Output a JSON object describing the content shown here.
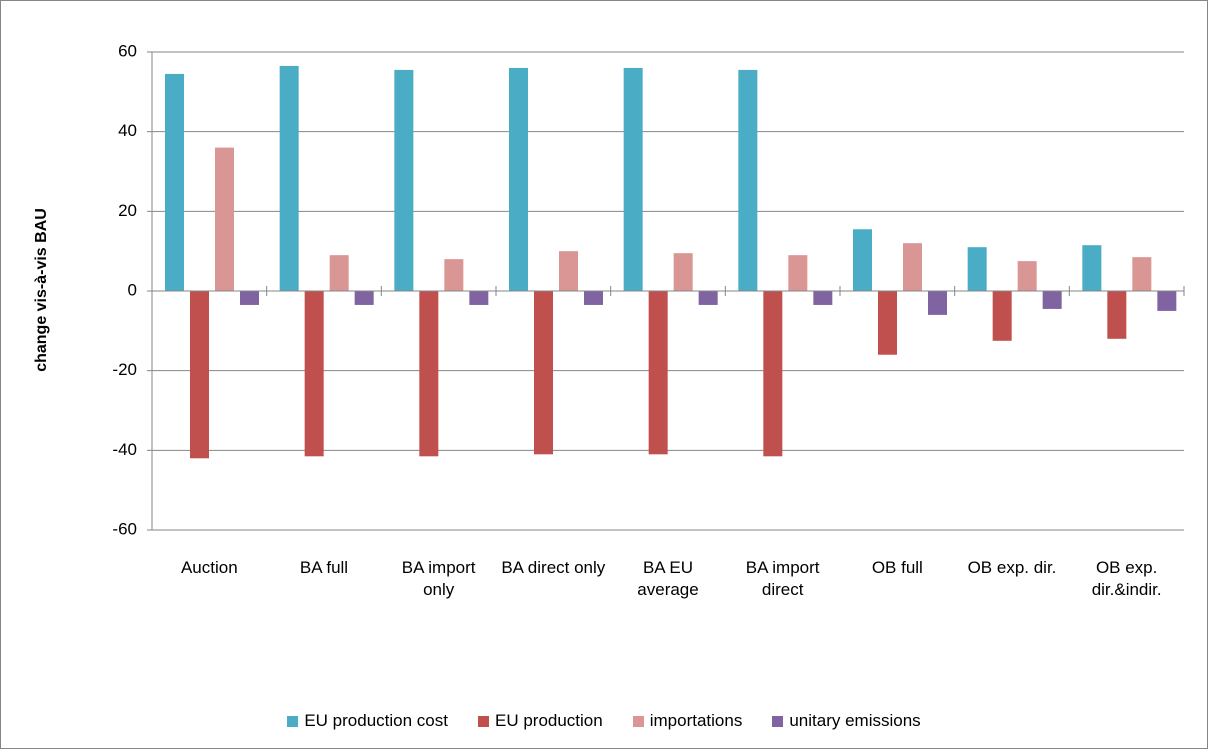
{
  "chart_data": {
    "type": "bar",
    "y_label": "change vis-à-vis BAU",
    "categories": [
      "Auction",
      "BA full",
      "BA import only",
      "BA direct only",
      "BA EU average",
      "BA import direct",
      "OB full",
      "OB exp. dir.",
      "OB exp. dir.&indir."
    ],
    "series": [
      {
        "name": "EU production cost",
        "color": "#4bacc6",
        "values": [
          54.5,
          56.5,
          55.5,
          56,
          56,
          55.5,
          15.5,
          11,
          11.5
        ]
      },
      {
        "name": "EU production",
        "color": "#c0504d",
        "values": [
          -42,
          -41.5,
          -41.5,
          -41,
          -41,
          -41.5,
          -16,
          -12.5,
          -12
        ]
      },
      {
        "name": "importations",
        "color": "#d99694",
        "values": [
          36,
          9,
          8,
          10,
          9.5,
          9,
          12,
          7.5,
          8.5
        ]
      },
      {
        "name": "unitary emissions",
        "color": "#8064a2",
        "values": [
          -3.5,
          -3.5,
          -3.5,
          -3.5,
          -3.5,
          -3.5,
          -6,
          -4.5,
          -5
        ]
      }
    ],
    "ylim": [
      -60,
      60
    ],
    "yticks": [
      -60,
      -40,
      -20,
      0,
      20,
      40,
      60
    ],
    "grid": true
  }
}
